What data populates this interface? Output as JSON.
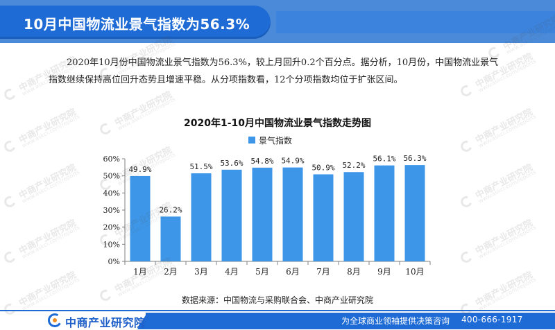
{
  "header": {
    "title": "10月中国物流业景气指数为56.3%"
  },
  "intro": {
    "text": "2020年10月份中国物流业景气指数为56.3%，较上月回升0.2个百分点。据分析，10月份，中国物流业景气指数继续保持高位回升态势且增速平稳。从分项指数看，12个分项指数均位于扩张区间。"
  },
  "chart_data": {
    "type": "bar",
    "title": "2020年1-10月中国物流业景气指数走势图",
    "categories": [
      "1月",
      "2月",
      "3月",
      "4月",
      "5月",
      "6月",
      "7月",
      "8月",
      "9月",
      "10月"
    ],
    "series": [
      {
        "name": "景气指数",
        "values": [
          49.9,
          26.2,
          51.5,
          53.6,
          54.8,
          54.9,
          50.9,
          52.2,
          56.1,
          56.3
        ],
        "labels": [
          "49.9%",
          "26.2%",
          "51.5%",
          "53.6%",
          "54.8%",
          "54.9%",
          "50.9%",
          "52.2%",
          "56.1%",
          "56.3%"
        ],
        "color": "#3d96e8"
      }
    ],
    "ylim": [
      0,
      60
    ],
    "yticks": [
      "0%",
      "10%",
      "20%",
      "30%",
      "40%",
      "50%",
      "60%"
    ],
    "legend": "top-left",
    "grid": false
  },
  "source": {
    "text": "数据来源：中国物流与采购联合会、中商产业研究院"
  },
  "footer": {
    "logo_text": "中商产业研究院",
    "slogan": "为全球商业领袖提供决策咨询",
    "phone": "400-666-1917",
    "brand_color": "#1e6bd6"
  },
  "watermark": {
    "text": "中商产业研究院",
    "sub": "www.askci.com/reports"
  }
}
